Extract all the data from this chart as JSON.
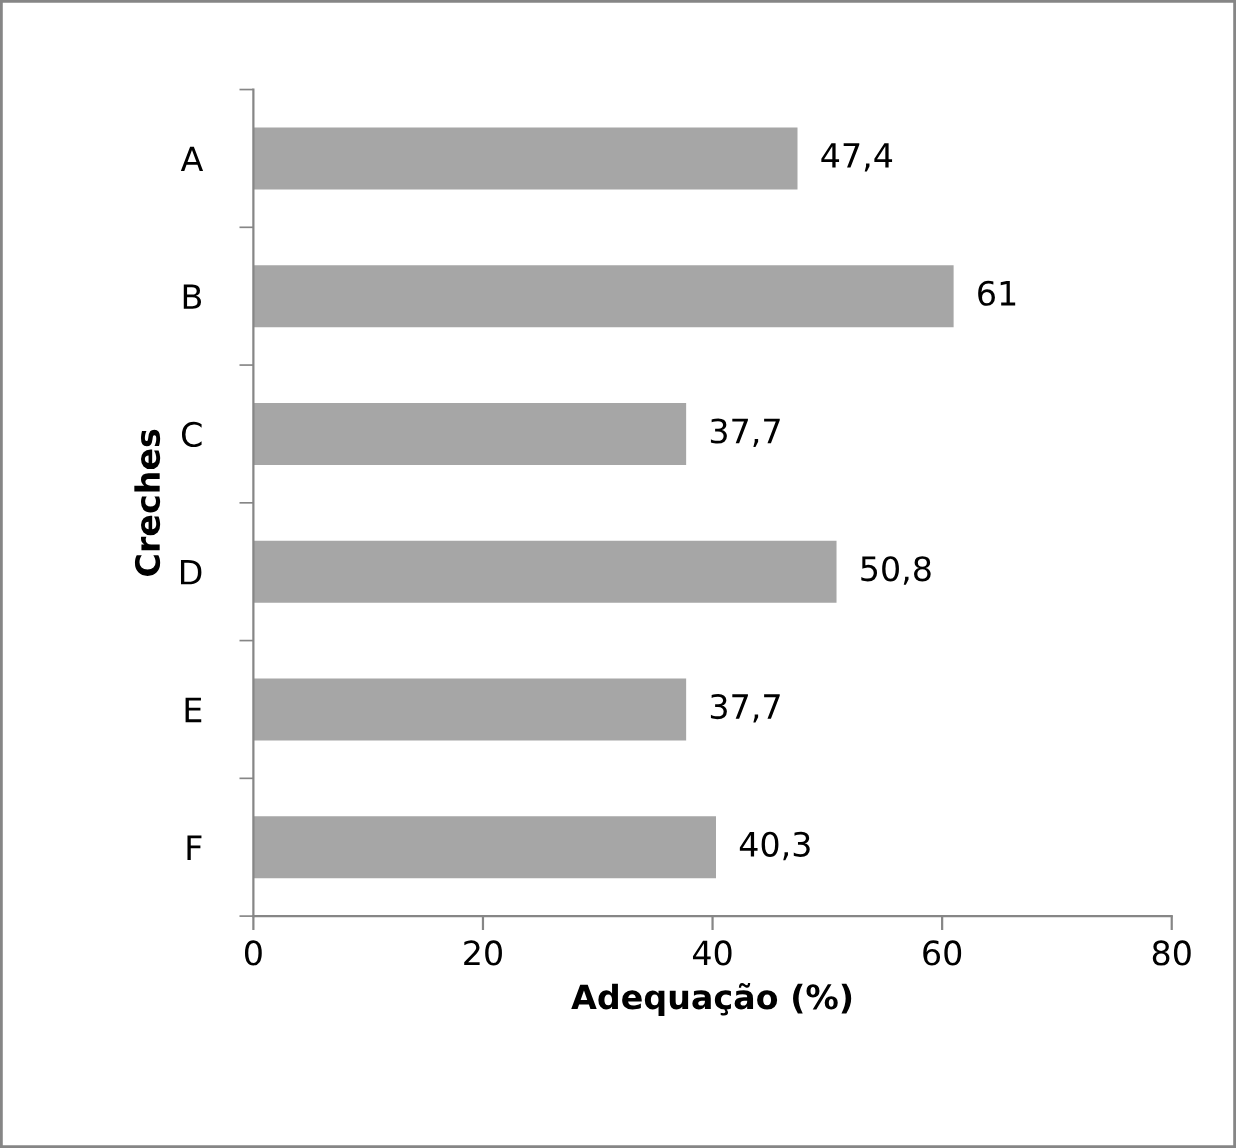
{
  "chart_data": {
    "type": "bar",
    "orientation": "horizontal",
    "categories": [
      "A",
      "B",
      "C",
      "D",
      "E",
      "F"
    ],
    "values": [
      47.4,
      61,
      37.7,
      50.8,
      37.7,
      40.3
    ],
    "value_labels": [
      "47,4",
      "61",
      "37,7",
      "50,8",
      "37,7",
      "40,3"
    ],
    "color": "#a6a6a6",
    "xlabel": "Adequação (%)",
    "ylabel": "Creches",
    "xlim": [
      0,
      80
    ],
    "xticks": [
      0,
      20,
      40,
      60,
      80
    ],
    "grid": false,
    "legend": false
  }
}
